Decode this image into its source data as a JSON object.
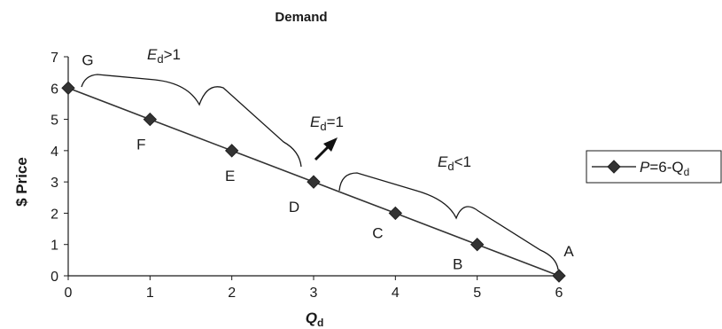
{
  "chart_data": {
    "type": "line",
    "title": "Demand",
    "xlabel": "Q",
    "xlabel_sub": "d",
    "ylabel": "$ Price",
    "xlim": [
      0,
      6
    ],
    "ylim": [
      0,
      7
    ],
    "xticks": [
      "0",
      "1",
      "2",
      "3",
      "4",
      "5",
      "6"
    ],
    "yticks": [
      "0",
      "1",
      "2",
      "3",
      "4",
      "5",
      "6",
      "7"
    ],
    "grid": false,
    "legend_position": "right",
    "series": [
      {
        "name": "P=6-Qd",
        "legend_main": "P",
        "legend_rest": "=6-Q",
        "legend_sub": "d",
        "color": "#333333",
        "marker": "diamond",
        "x": [
          0,
          1,
          2,
          3,
          4,
          5,
          6
        ],
        "y": [
          6,
          5,
          4,
          3,
          2,
          1,
          0
        ]
      }
    ],
    "point_labels": [
      {
        "text": "G",
        "x": 0,
        "y": 6
      },
      {
        "text": "F",
        "x": 1,
        "y": 5
      },
      {
        "text": "E",
        "x": 2,
        "y": 4
      },
      {
        "text": "D",
        "x": 3,
        "y": 3
      },
      {
        "text": "C",
        "x": 4,
        "y": 2
      },
      {
        "text": "B",
        "x": 5,
        "y": 1
      },
      {
        "text": "A",
        "x": 6,
        "y": 0
      }
    ],
    "annotations": {
      "elastic": {
        "main": "E",
        "sub": "d",
        "rest": ">1"
      },
      "unit": {
        "main": "E",
        "sub": "d",
        "rest": "=1"
      },
      "inelastic": {
        "main": "E",
        "sub": "d",
        "rest": "<1"
      }
    }
  }
}
